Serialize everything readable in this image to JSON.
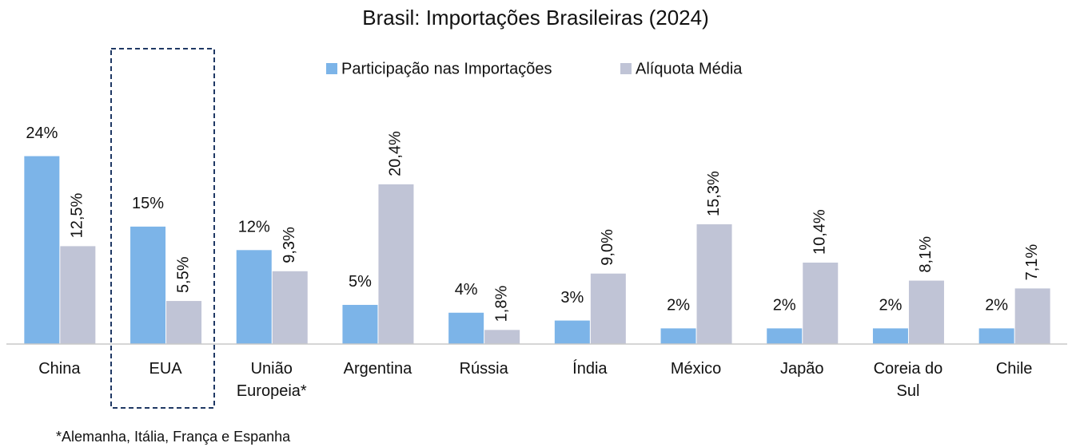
{
  "chart_data": {
    "type": "bar",
    "title": "Brasil: Importações Brasileiras (2024)",
    "categories": [
      "China",
      "EUA",
      "União Europeia*",
      "Argentina",
      "Rússia",
      "Índia",
      "México",
      "Japão",
      "Coreia do Sul",
      "Chile"
    ],
    "series": [
      {
        "name": "Participação nas Importações",
        "color": "#7cb4e8",
        "values": [
          24,
          15,
          12,
          5,
          4,
          3,
          2,
          2,
          2,
          2
        ],
        "value_labels": [
          "24%",
          "15%",
          "12%",
          "5%",
          "4%",
          "3%",
          "2%",
          "2%",
          "2%",
          "2%"
        ]
      },
      {
        "name": "Alíquota Média",
        "color": "#c0c4d6",
        "values": [
          12.5,
          5.5,
          9.3,
          20.4,
          1.8,
          9.0,
          15.3,
          10.4,
          8.1,
          7.1
        ],
        "value_labels": [
          "12,5%",
          "5,5%",
          "9,3%",
          "20,4%",
          "1,8%",
          "9,0%",
          "15,3%",
          "10,4%",
          "8,1%",
          "7,1%"
        ]
      }
    ],
    "ylim": [
      0,
      26
    ],
    "legend": "top",
    "footnote": "*Alemanha, Itália, França e Espanha"
  }
}
